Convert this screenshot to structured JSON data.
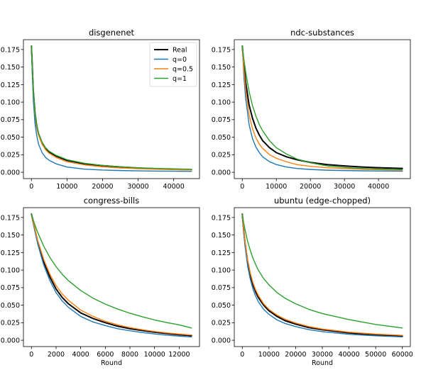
{
  "chart_data": [
    {
      "type": "line",
      "title": "disgenenet",
      "xlabel": "",
      "ylabel": "",
      "xlim": [
        -2250,
        47250
      ],
      "ylim": [
        -0.009,
        0.189
      ],
      "xticks": [
        0,
        10000,
        20000,
        30000,
        40000
      ],
      "yticks": [
        0.0,
        0.025,
        0.05,
        0.075,
        0.1,
        0.125,
        0.15,
        0.175
      ],
      "x": [
        0,
        250,
        500,
        1000,
        1500,
        2000,
        3000,
        4000,
        5000,
        7000,
        10000,
        15000,
        20000,
        25000,
        30000,
        35000,
        40000,
        45000
      ],
      "series": [
        {
          "name": "Real",
          "color": "#000000",
          "width": 2.0,
          "values": [
            0.18,
            0.15,
            0.118,
            0.085,
            0.066,
            0.054,
            0.041,
            0.034,
            0.029,
            0.023,
            0.017,
            0.012,
            0.0095,
            0.0075,
            0.006,
            0.005,
            0.0042,
            0.0037
          ]
        },
        {
          "name": "q=0",
          "color": "#1f77b4",
          "width": 1.4,
          "values": [
            0.18,
            0.14,
            0.105,
            0.07,
            0.052,
            0.04,
            0.028,
            0.021,
            0.017,
            0.012,
            0.0075,
            0.0045,
            0.0032,
            0.0025,
            0.002,
            0.0017,
            0.0015,
            0.0013
          ]
        },
        {
          "name": "q=0.5",
          "color": "#ff7f0e",
          "width": 1.4,
          "values": [
            0.18,
            0.15,
            0.118,
            0.084,
            0.065,
            0.053,
            0.04,
            0.032,
            0.027,
            0.021,
            0.015,
            0.0105,
            0.0078,
            0.0062,
            0.0051,
            0.0043,
            0.0037,
            0.0033
          ]
        },
        {
          "name": "q=1",
          "color": "#2ca02c",
          "width": 1.4,
          "values": [
            0.18,
            0.152,
            0.12,
            0.087,
            0.068,
            0.056,
            0.043,
            0.035,
            0.03,
            0.024,
            0.018,
            0.0128,
            0.0098,
            0.0079,
            0.0065,
            0.0056,
            0.0049,
            0.0044
          ]
        }
      ],
      "legend": {
        "placement": "top-right",
        "entries": [
          "Real",
          "q=0",
          "q=0.5",
          "q=1"
        ]
      }
    },
    {
      "type": "line",
      "title": "ndc-substances",
      "xlabel": "",
      "ylabel": "",
      "xlim": [
        -2350,
        49350
      ],
      "ylim": [
        -0.009,
        0.189
      ],
      "xticks": [
        0,
        10000,
        20000,
        30000,
        40000
      ],
      "yticks": [
        0.0,
        0.025,
        0.05,
        0.075,
        0.1,
        0.125,
        0.15,
        0.175
      ],
      "x": [
        0,
        500,
        1000,
        2000,
        3000,
        4000,
        5000,
        6000,
        8000,
        10000,
        13000,
        16000,
        20000,
        25000,
        30000,
        35000,
        40000,
        47000
      ],
      "series": [
        {
          "name": "Real",
          "color": "#000000",
          "width": 2.0,
          "values": [
            0.18,
            0.15,
            0.128,
            0.096,
            0.077,
            0.063,
            0.053,
            0.045,
            0.035,
            0.028,
            0.022,
            0.018,
            0.014,
            0.011,
            0.009,
            0.0075,
            0.0065,
            0.0055
          ]
        },
        {
          "name": "q=0",
          "color": "#1f77b4",
          "width": 1.4,
          "values": [
            0.18,
            0.135,
            0.105,
            0.068,
            0.048,
            0.036,
            0.028,
            0.022,
            0.015,
            0.011,
            0.0075,
            0.0055,
            0.004,
            0.003,
            0.0025,
            0.0021,
            0.0018,
            0.0015
          ]
        },
        {
          "name": "q=0.5",
          "color": "#ff7f0e",
          "width": 1.4,
          "values": [
            0.18,
            0.145,
            0.118,
            0.082,
            0.062,
            0.049,
            0.04,
            0.034,
            0.025,
            0.02,
            0.015,
            0.011,
            0.0085,
            0.0065,
            0.0052,
            0.0044,
            0.0037,
            0.003
          ]
        },
        {
          "name": "q=1",
          "color": "#2ca02c",
          "width": 1.4,
          "values": [
            0.18,
            0.16,
            0.143,
            0.115,
            0.095,
            0.08,
            0.068,
            0.059,
            0.045,
            0.035,
            0.026,
            0.019,
            0.0135,
            0.009,
            0.0068,
            0.0055,
            0.0047,
            0.0038
          ]
        }
      ],
      "legend": null
    },
    {
      "type": "line",
      "title": "congress-bills",
      "xlabel": "Round",
      "ylabel": "",
      "xlim": [
        -650,
        13650
      ],
      "ylim": [
        -0.009,
        0.189
      ],
      "xticks": [
        0,
        2000,
        4000,
        6000,
        8000,
        10000,
        12000
      ],
      "yticks": [
        0.0,
        0.025,
        0.05,
        0.075,
        0.1,
        0.125,
        0.15,
        0.175
      ],
      "x": [
        0,
        250,
        500,
        1000,
        1500,
        2000,
        2500,
        3000,
        4000,
        5000,
        6000,
        7000,
        8000,
        9000,
        10000,
        11000,
        12000,
        13000
      ],
      "series": [
        {
          "name": "Real",
          "color": "#000000",
          "width": 2.0,
          "values": [
            0.18,
            0.16,
            0.141,
            0.112,
            0.09,
            0.073,
            0.061,
            0.052,
            0.039,
            0.031,
            0.025,
            0.02,
            0.0165,
            0.0138,
            0.0115,
            0.0095,
            0.0078,
            0.0065
          ]
        },
        {
          "name": "q=0",
          "color": "#1f77b4",
          "width": 1.4,
          "values": [
            0.18,
            0.158,
            0.138,
            0.107,
            0.085,
            0.068,
            0.056,
            0.047,
            0.034,
            0.026,
            0.021,
            0.0165,
            0.0135,
            0.011,
            0.009,
            0.0072,
            0.0058,
            0.0048
          ]
        },
        {
          "name": "q=0.5",
          "color": "#ff7f0e",
          "width": 1.4,
          "values": [
            0.18,
            0.161,
            0.143,
            0.115,
            0.094,
            0.078,
            0.066,
            0.057,
            0.043,
            0.034,
            0.027,
            0.022,
            0.018,
            0.015,
            0.0125,
            0.0105,
            0.0088,
            0.0075
          ]
        },
        {
          "name": "q=1",
          "color": "#2ca02c",
          "width": 1.4,
          "values": [
            0.18,
            0.166,
            0.154,
            0.134,
            0.118,
            0.105,
            0.094,
            0.085,
            0.071,
            0.06,
            0.0515,
            0.0445,
            0.0385,
            0.0335,
            0.029,
            0.0252,
            0.022,
            0.0175
          ]
        }
      ],
      "legend": null
    },
    {
      "type": "line",
      "title": "ubuntu (edge-chopped)",
      "xlabel": "Round",
      "ylabel": "",
      "xlim": [
        -3000,
        63000
      ],
      "ylim": [
        -0.009,
        0.189
      ],
      "xticks": [
        0,
        10000,
        20000,
        30000,
        40000,
        50000,
        60000
      ],
      "yticks": [
        0.0,
        0.025,
        0.05,
        0.075,
        0.1,
        0.125,
        0.15,
        0.175
      ],
      "x": [
        0,
        500,
        1000,
        2000,
        3000,
        4000,
        5000,
        6000,
        8000,
        10000,
        13000,
        16000,
        20000,
        25000,
        30000,
        40000,
        50000,
        60000
      ],
      "series": [
        {
          "name": "Real",
          "color": "#000000",
          "width": 2.0,
          "values": [
            0.18,
            0.158,
            0.14,
            0.112,
            0.093,
            0.079,
            0.069,
            0.061,
            0.05,
            0.042,
            0.034,
            0.028,
            0.023,
            0.018,
            0.015,
            0.0105,
            0.0078,
            0.006
          ]
        },
        {
          "name": "q=0",
          "color": "#1f77b4",
          "width": 1.4,
          "values": [
            0.18,
            0.155,
            0.135,
            0.106,
            0.087,
            0.073,
            0.063,
            0.055,
            0.044,
            0.037,
            0.029,
            0.024,
            0.0195,
            0.015,
            0.0123,
            0.0085,
            0.0063,
            0.0048
          ]
        },
        {
          "name": "q=0.5",
          "color": "#ff7f0e",
          "width": 1.4,
          "values": [
            0.18,
            0.159,
            0.142,
            0.115,
            0.096,
            0.082,
            0.072,
            0.064,
            0.052,
            0.044,
            0.036,
            0.03,
            0.0245,
            0.0195,
            0.016,
            0.0115,
            0.0088,
            0.007
          ]
        },
        {
          "name": "q=1",
          "color": "#2ca02c",
          "width": 1.4,
          "values": [
            0.18,
            0.168,
            0.158,
            0.141,
            0.128,
            0.117,
            0.108,
            0.1,
            0.088,
            0.079,
            0.068,
            0.06,
            0.052,
            0.044,
            0.038,
            0.0295,
            0.0225,
            0.0175
          ]
        }
      ],
      "legend": null
    }
  ]
}
